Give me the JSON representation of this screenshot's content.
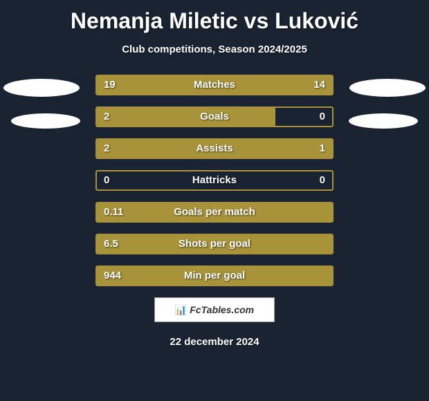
{
  "background_color": "#1a2332",
  "accent_color": "#a8933a",
  "text_color": "#ffffff",
  "header": {
    "title": "Nemanja Miletic vs Luković",
    "subtitle": "Club competitions, Season 2024/2025"
  },
  "stats": [
    {
      "label": "Matches",
      "left_value": "19",
      "right_value": "14",
      "left_fill_pct": 50,
      "right_fill_pct": 50
    },
    {
      "label": "Goals",
      "left_value": "2",
      "right_value": "0",
      "left_fill_pct": 76,
      "right_fill_pct": 0
    },
    {
      "label": "Assists",
      "left_value": "2",
      "right_value": "1",
      "left_fill_pct": 68,
      "right_fill_pct": 32
    },
    {
      "label": "Hattricks",
      "left_value": "0",
      "right_value": "0",
      "left_fill_pct": 0,
      "right_fill_pct": 0
    },
    {
      "label": "Goals per match",
      "left_value": "0.11",
      "right_value": "",
      "left_fill_pct": 100,
      "right_fill_pct": 0
    },
    {
      "label": "Shots per goal",
      "left_value": "6.5",
      "right_value": "",
      "left_fill_pct": 100,
      "right_fill_pct": 0
    },
    {
      "label": "Min per goal",
      "left_value": "944",
      "right_value": "",
      "left_fill_pct": 100,
      "right_fill_pct": 0
    }
  ],
  "logo": {
    "text": "FcTables.com",
    "icon": "📊"
  },
  "date": "22 december 2024"
}
